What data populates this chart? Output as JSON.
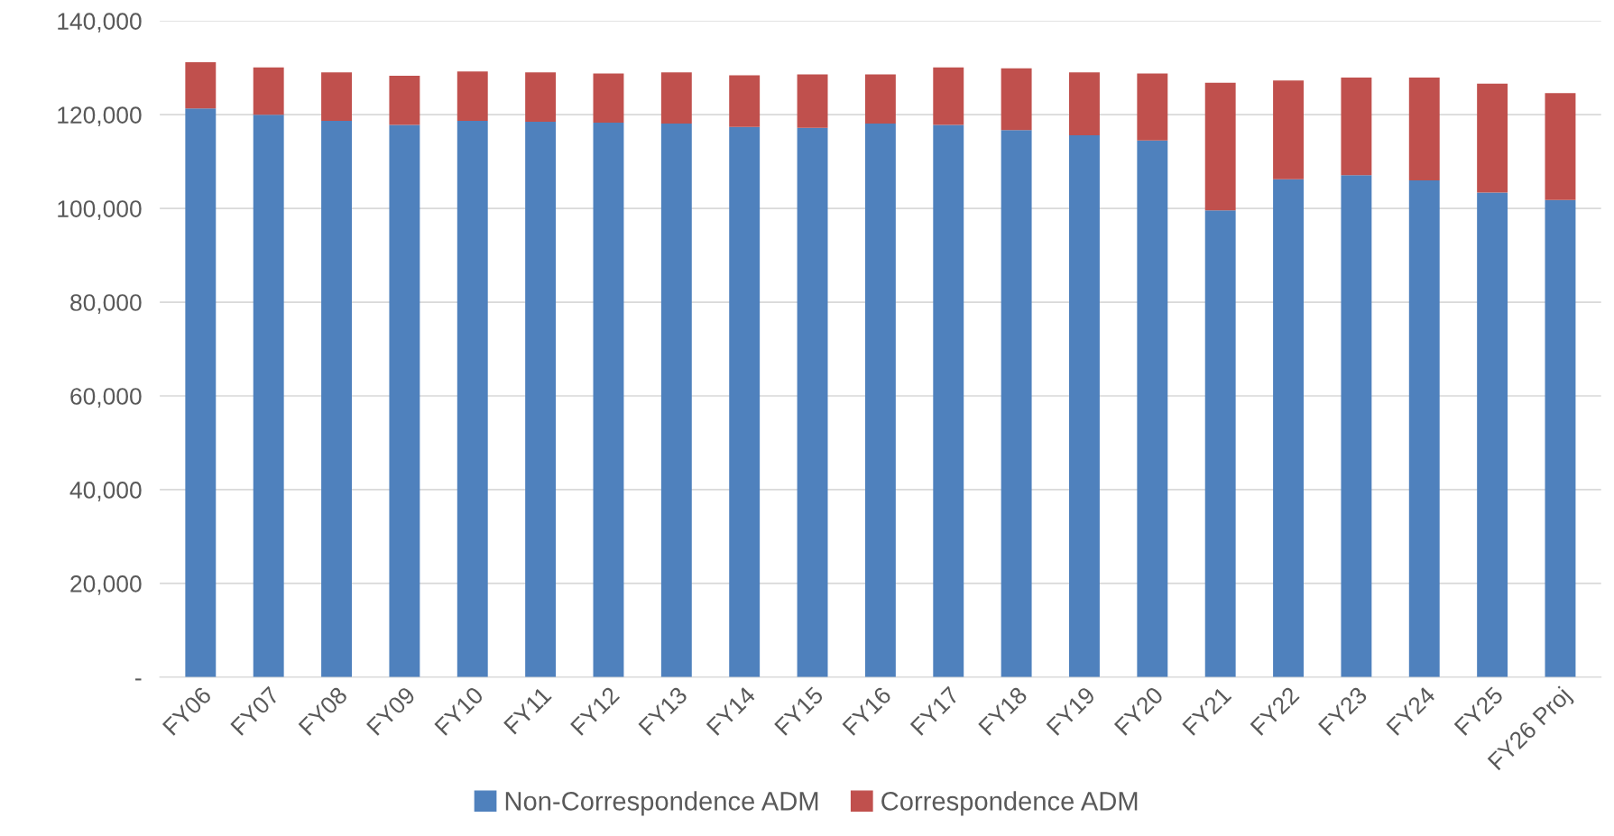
{
  "chart_data": {
    "type": "bar",
    "stacked": true,
    "categories": [
      "FY06",
      "FY07",
      "FY08",
      "FY09",
      "FY10",
      "FY11",
      "FY12",
      "FY13",
      "FY14",
      "FY15",
      "FY16",
      "FY17",
      "FY18",
      "FY19",
      "FY20",
      "FY21",
      "FY22",
      "FY23",
      "FY24",
      "FY25",
      "FY26 Proj"
    ],
    "series": [
      {
        "name": "Non-Correspondence ADM",
        "color": "#4f81bd",
        "values": [
          121300,
          120000,
          118700,
          117800,
          118700,
          118500,
          118300,
          118100,
          117400,
          117200,
          118100,
          117800,
          116700,
          115600,
          114500,
          99600,
          106200,
          107100,
          106000,
          103400,
          101800
        ]
      },
      {
        "name": "Correspondence ADM",
        "color": "#c0504d",
        "values": [
          9900,
          10100,
          10300,
          10500,
          10500,
          10500,
          10500,
          10900,
          11000,
          11400,
          10500,
          12300,
          13200,
          13400,
          14300,
          27200,
          21100,
          20800,
          21900,
          23200,
          22800
        ]
      }
    ],
    "ylim": [
      0,
      140000
    ],
    "yticks": [
      {
        "value": 0,
        "label": "-"
      },
      {
        "value": 20000,
        "label": "20,000"
      },
      {
        "value": 40000,
        "label": "40,000"
      },
      {
        "value": 60000,
        "label": "60,000"
      },
      {
        "value": 80000,
        "label": "80,000"
      },
      {
        "value": 100000,
        "label": "100,000"
      },
      {
        "value": 120000,
        "label": "120,000"
      },
      {
        "value": 140000,
        "label": "140,000"
      }
    ],
    "grid": "y",
    "legend": "bottom"
  }
}
